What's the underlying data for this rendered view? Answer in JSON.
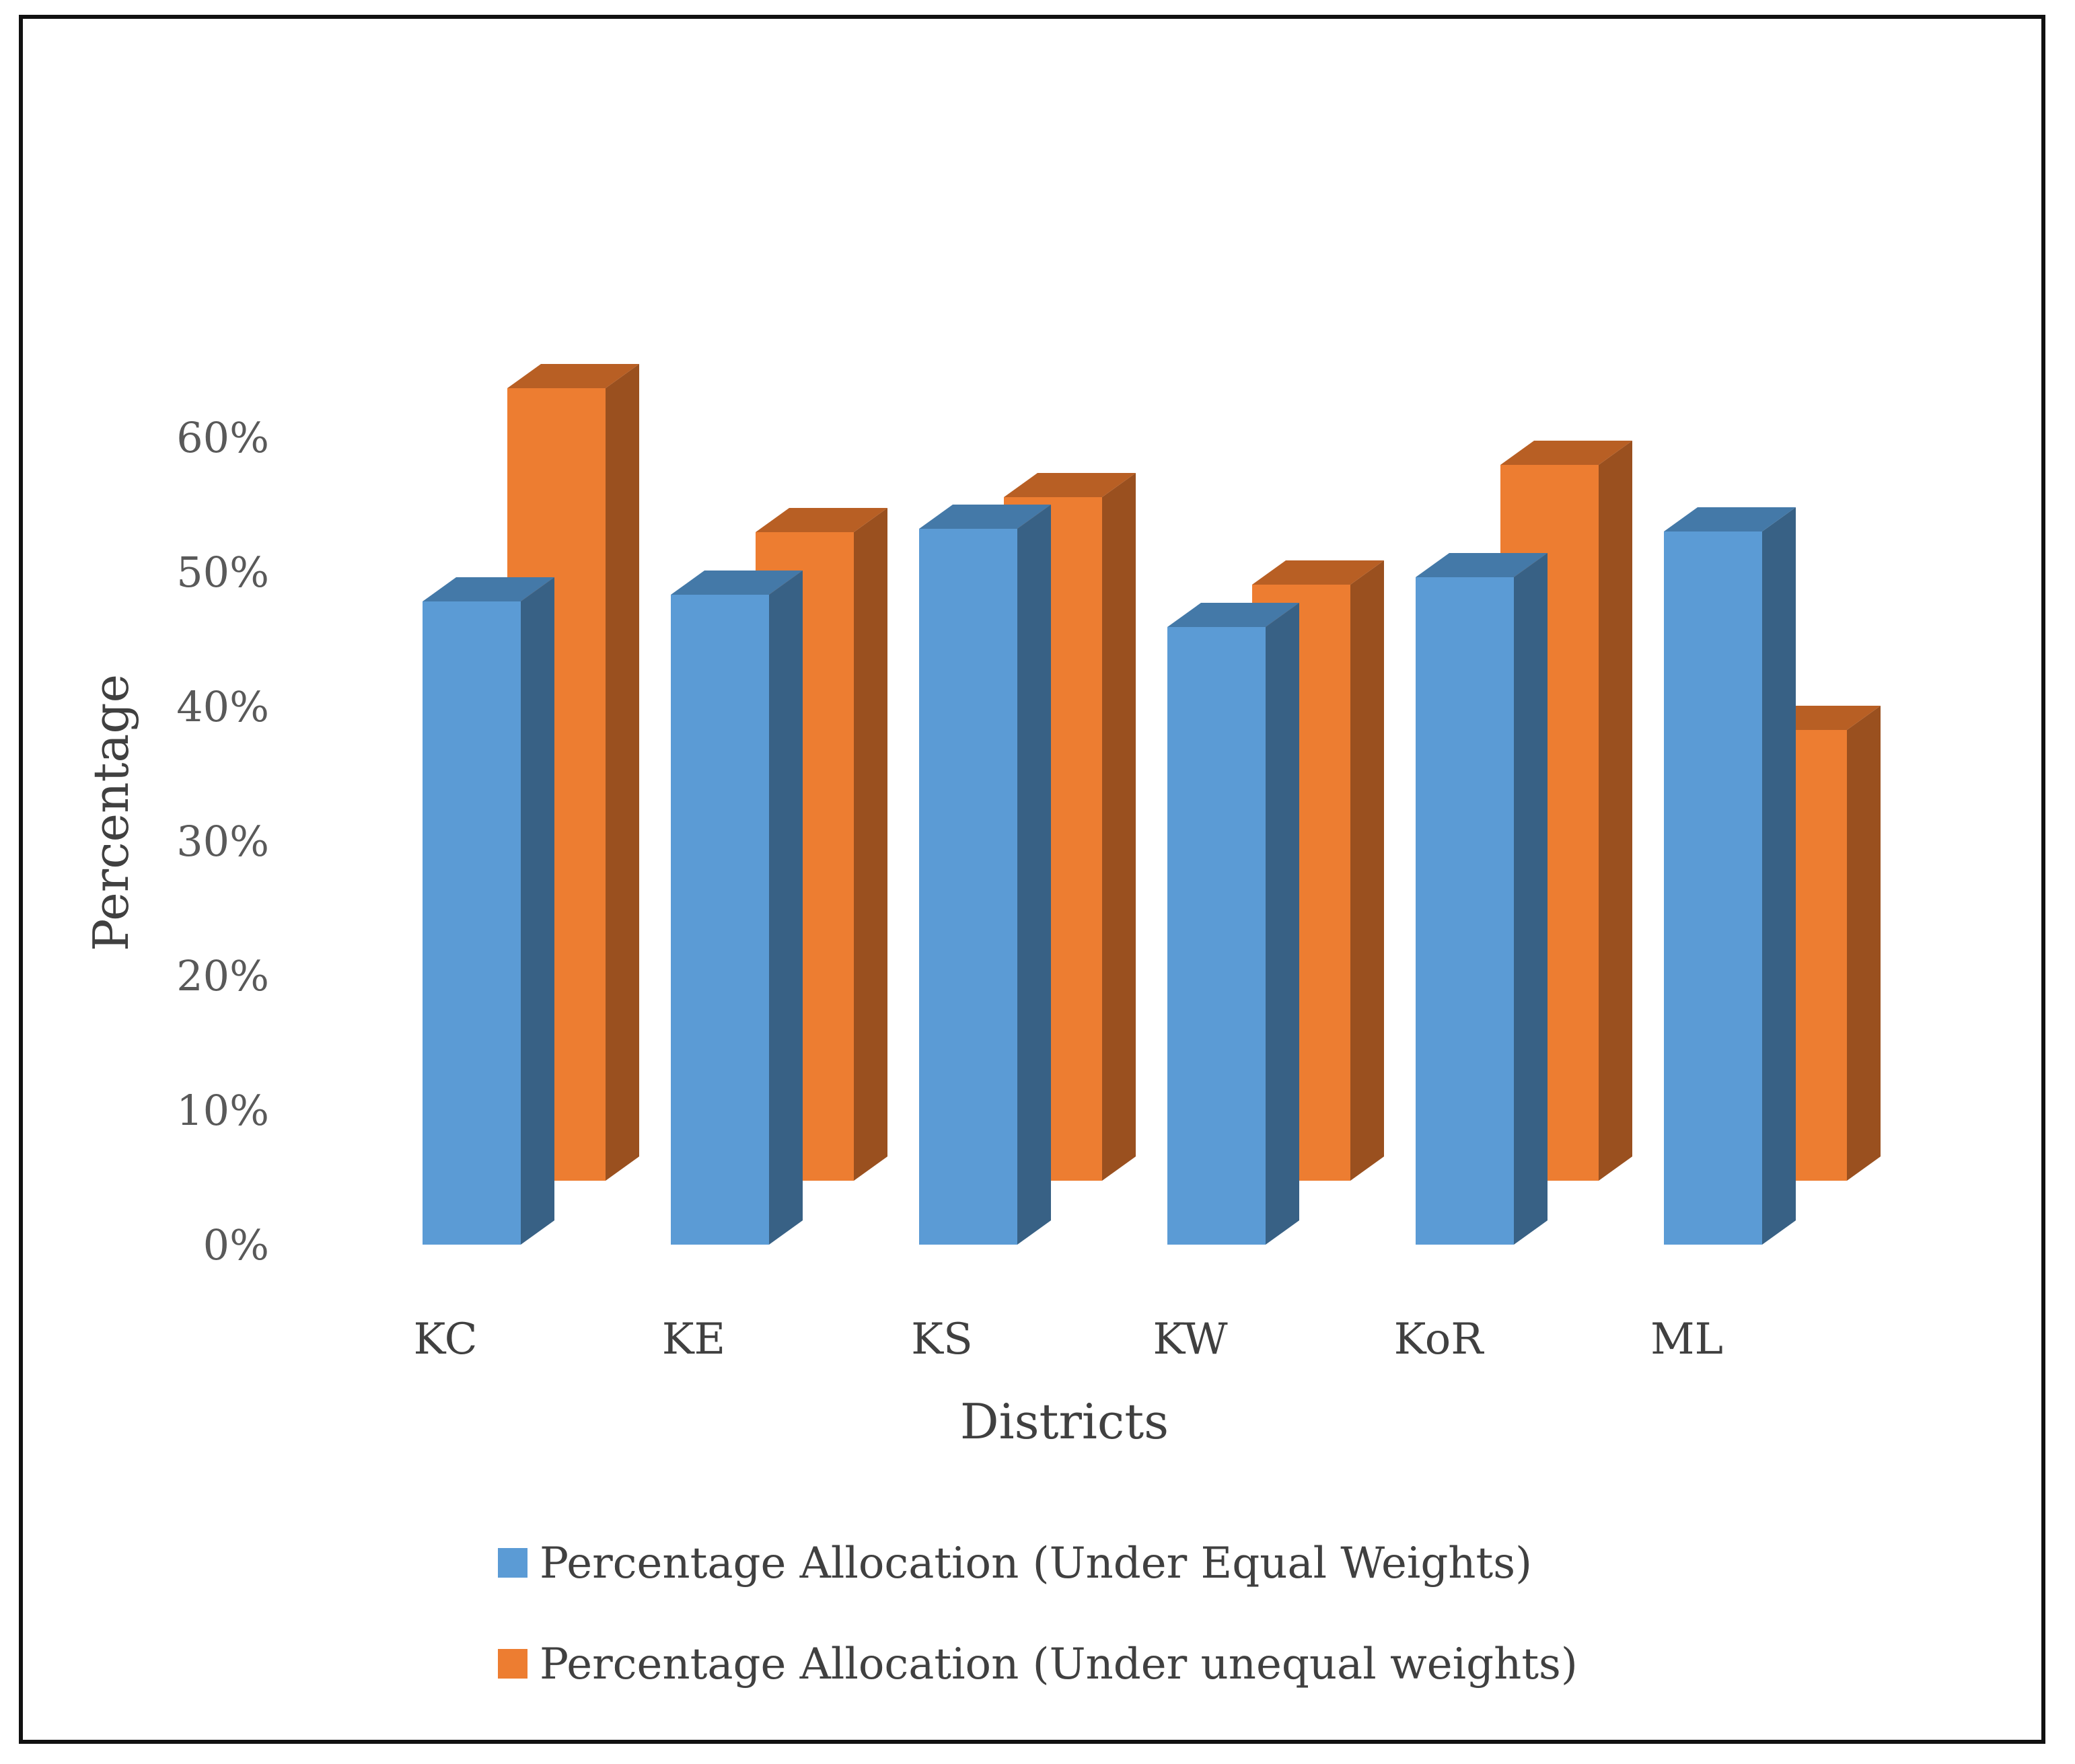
{
  "chart_data": {
    "type": "bar",
    "style": "3d-clustered-column",
    "title": "",
    "xlabel": "Districts",
    "ylabel": "Percentage",
    "ylim": [
      0,
      0.6
    ],
    "yticks": [
      0,
      0.1,
      0.2,
      0.3,
      0.4,
      0.5,
      0.6
    ],
    "ytick_labels": [
      "0%",
      "10%",
      "20%",
      "30%",
      "40%",
      "50%",
      "60%"
    ],
    "grid": false,
    "legend_position": "bottom",
    "categories": [
      "KC",
      "KE",
      "KS",
      "KW",
      "KoR",
      "ML"
    ],
    "series": [
      {
        "name": "Percentage Allocation (Under Equal Weights)",
        "color": "#5B9BD5",
        "side_color": "#386185",
        "top_color": "#4479A8",
        "values": [
          0.478,
          0.483,
          0.532,
          0.459,
          0.496,
          0.53
        ]
      },
      {
        "name": "Percentage Allocation (Under unequal weights)",
        "color": "#ED7D31",
        "side_color": "#9A501F",
        "top_color": "#B85F24",
        "values": [
          0.589,
          0.482,
          0.508,
          0.443,
          0.532,
          0.335
        ]
      }
    ]
  }
}
